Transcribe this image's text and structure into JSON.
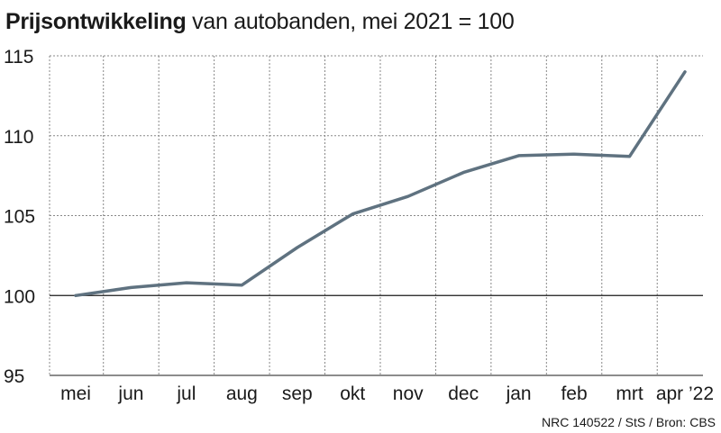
{
  "title": {
    "bold": "Prijsontwikkeling",
    "rest": "van autobanden, mei 2021 = 100"
  },
  "source": "NRC 140522 / StS / Bron: CBS",
  "colors": {
    "line": "#5f7280",
    "grid": "#888888",
    "baseline": "#1a1a1a",
    "text": "#1a1a1a"
  },
  "chart_data": {
    "type": "line",
    "categories": [
      "mei",
      "jun",
      "jul",
      "aug",
      "sep",
      "okt",
      "nov",
      "dec",
      "jan",
      "feb",
      "mrt",
      "apr ’22"
    ],
    "series": [
      {
        "values": [
          100.0,
          100.5,
          100.8,
          100.65,
          103.0,
          105.1,
          106.2,
          107.7,
          108.75,
          108.85,
          108.7,
          114.0
        ]
      }
    ],
    "ylim": [
      95,
      115
    ],
    "yticks": [
      95,
      100,
      105,
      110,
      115
    ],
    "baseline": 100,
    "grid": true,
    "grid_style": "dotted",
    "legend": "none"
  }
}
